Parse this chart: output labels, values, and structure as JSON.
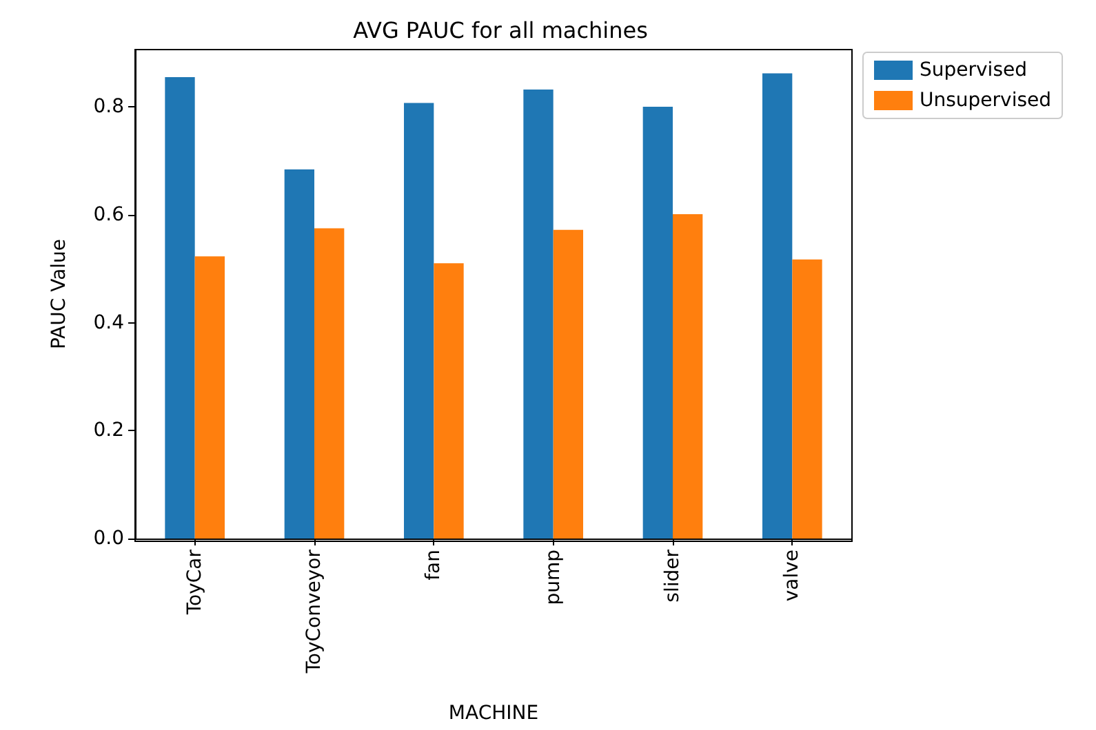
{
  "chart_data": {
    "type": "bar",
    "title": "AVG PAUC for all machines",
    "xlabel": "MACHINE",
    "ylabel": "PAUC Value",
    "categories": [
      "ToyCar",
      "ToyConveyor",
      "fan",
      "pump",
      "slider",
      "valve"
    ],
    "series": [
      {
        "name": "Supervised",
        "color": "#1f77b4",
        "values": [
          0.855,
          0.684,
          0.807,
          0.832,
          0.8,
          0.862
        ]
      },
      {
        "name": "Unsupervised",
        "color": "#ff7f0e",
        "values": [
          0.523,
          0.575,
          0.51,
          0.572,
          0.601,
          0.517
        ]
      }
    ],
    "ylim": [
      0,
      0.906
    ],
    "yticks": [
      {
        "value": 0,
        "label": "0.0"
      },
      0.2,
      0.4,
      0.6,
      0.8
    ],
    "grid": false,
    "legend": "top right"
  }
}
